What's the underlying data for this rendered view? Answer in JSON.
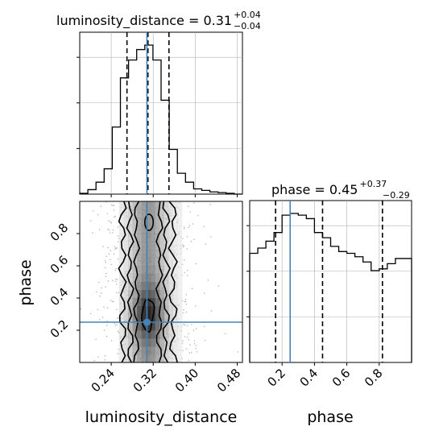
{
  "chart_data": [
    {
      "type": "histogram",
      "panel": "marginal-luminosity_distance",
      "title": "luminosity_distance = 0.31",
      "title_sup": "+0.04",
      "title_sub": "−0.04",
      "xlim": [
        0.18,
        0.49
      ],
      "bin_edges": [
        0.18,
        0.1955,
        0.211,
        0.2265,
        0.242,
        0.2575,
        0.273,
        0.2885,
        0.304,
        0.3195,
        0.335,
        0.3505,
        0.366,
        0.3815,
        0.397,
        0.4125,
        0.428,
        0.4435,
        0.459,
        0.4745,
        0.49
      ],
      "counts": [
        0.005,
        0.03,
        0.08,
        0.17,
        0.45,
        0.78,
        0.9,
        0.97,
        1.0,
        0.9,
        0.63,
        0.3,
        0.14,
        0.08,
        0.035,
        0.025,
        0.015,
        0.01,
        0.005,
        0.0
      ],
      "median": 0.31,
      "quantiles": [
        0.27,
        0.31,
        0.35
      ],
      "truth": 0.308,
      "grid": true
    },
    {
      "type": "histogram",
      "panel": "marginal-phase",
      "title": "phase = 0.45",
      "title_sup": "+0.37",
      "title_sub": "−0.29",
      "xlim": [
        0.0,
        1.0
      ],
      "bin_edges": [
        0.0,
        0.05,
        0.1,
        0.15,
        0.2,
        0.25,
        0.3,
        0.35,
        0.4,
        0.45,
        0.5,
        0.55,
        0.6,
        0.65,
        0.7,
        0.75,
        0.8,
        0.85,
        0.9,
        0.95,
        1.0
      ],
      "counts": [
        0.63,
        0.66,
        0.7,
        0.75,
        0.85,
        0.86,
        0.85,
        0.83,
        0.75,
        0.72,
        0.67,
        0.64,
        0.63,
        0.61,
        0.58,
        0.53,
        0.54,
        0.57,
        0.6,
        0.6
      ],
      "quantiles": [
        0.16,
        0.45,
        0.82
      ],
      "truth": 0.25,
      "grid": true
    },
    {
      "type": "2d-density",
      "panel": "joint-luminosity_distance-phase",
      "xlabel": "luminosity_distance",
      "ylabel": "phase",
      "xlim": [
        0.18,
        0.49
      ],
      "ylim": [
        0.0,
        1.0
      ],
      "xticks": [
        "0.24",
        "0.32",
        "0.40",
        "0.48"
      ],
      "yticks": [
        "0.2",
        "0.4",
        "0.6",
        "0.8"
      ],
      "truth": [
        0.308,
        0.25
      ],
      "contour_levels": 4
    },
    {
      "type": "axis",
      "panel": "phase-xaxis",
      "xlabel": "phase",
      "xticks": [
        "0.2",
        "0.4",
        "0.6",
        "0.8"
      ]
    }
  ],
  "colors": {
    "truth": "#4682b4",
    "density": "#000000",
    "grid": "#b0b0b0"
  }
}
